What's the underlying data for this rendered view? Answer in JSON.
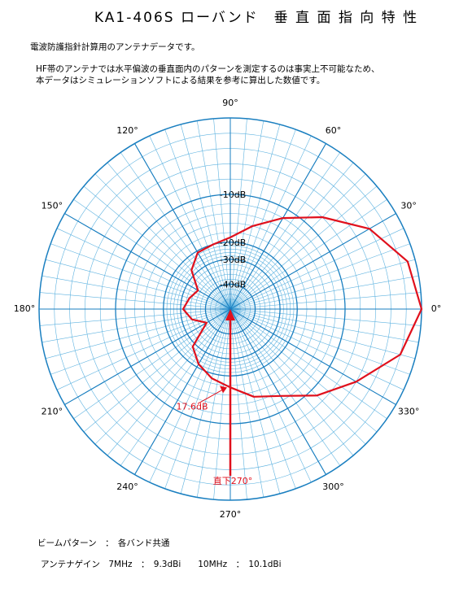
{
  "chart_data": {
    "type": "polar",
    "title": "KA1-406S ローバンド　垂 直 面 指 向 特 性",
    "subtitle": "電波防護指針計算用のアンテナデータです。",
    "notes": [
      "HF帯のアンテナでは水平偏波の垂直面内のパターンを測定するのは事実上不可能なため、",
      "本データはシミュレーションソフトによる結果を参考に算出した数値です。"
    ],
    "footer": [
      "ビームパターン　：　各バンド共通",
      "アンテナゲイン　7MHz　：　9.3dBi　　10MHz　：　10.1dBi"
    ],
    "angles": [
      0,
      15,
      30,
      45,
      60,
      75,
      90,
      105,
      120,
      135,
      150,
      165,
      180,
      195,
      210,
      225,
      240,
      255,
      270,
      285,
      300,
      315,
      330,
      345
    ],
    "series": [
      {
        "color": "#e0101c",
        "values": [
          0,
          -1,
          -4,
          -8,
          -12,
          -16,
          -19,
          -20,
          -21,
          -27,
          -35,
          -33,
          -31,
          -34,
          -39,
          -28,
          -22,
          -19,
          -17.6,
          -15,
          -13,
          -9,
          -6,
          -2
        ]
      }
    ],
    "rlim": [
      -50,
      0
    ],
    "rticks": [
      {
        "value": -10,
        "label": "-10dB"
      },
      {
        "value": -20,
        "label": "-20dB"
      },
      {
        "value": -30,
        "label": "-30dB"
      },
      {
        "value": -40,
        "label": "-40dB"
      }
    ],
    "angle_ticks": [
      {
        "value": 0,
        "label": "0°"
      },
      {
        "value": 30,
        "label": "30°"
      },
      {
        "value": 60,
        "label": "60°"
      },
      {
        "value": 90,
        "label": "90°"
      },
      {
        "value": 120,
        "label": "120°"
      },
      {
        "value": 150,
        "label": "150°"
      },
      {
        "value": 180,
        "label": "180°"
      },
      {
        "value": 210,
        "label": "210°"
      },
      {
        "value": 240,
        "label": "240°"
      },
      {
        "value": 270,
        "label": "270°"
      },
      {
        "value": 300,
        "label": "300°"
      },
      {
        "value": 330,
        "label": "330°"
      }
    ],
    "annotations": [
      {
        "text": "17.6dB",
        "angle": 270,
        "value": -17.6
      },
      {
        "text": "直下270°",
        "angle": 270
      }
    ]
  }
}
